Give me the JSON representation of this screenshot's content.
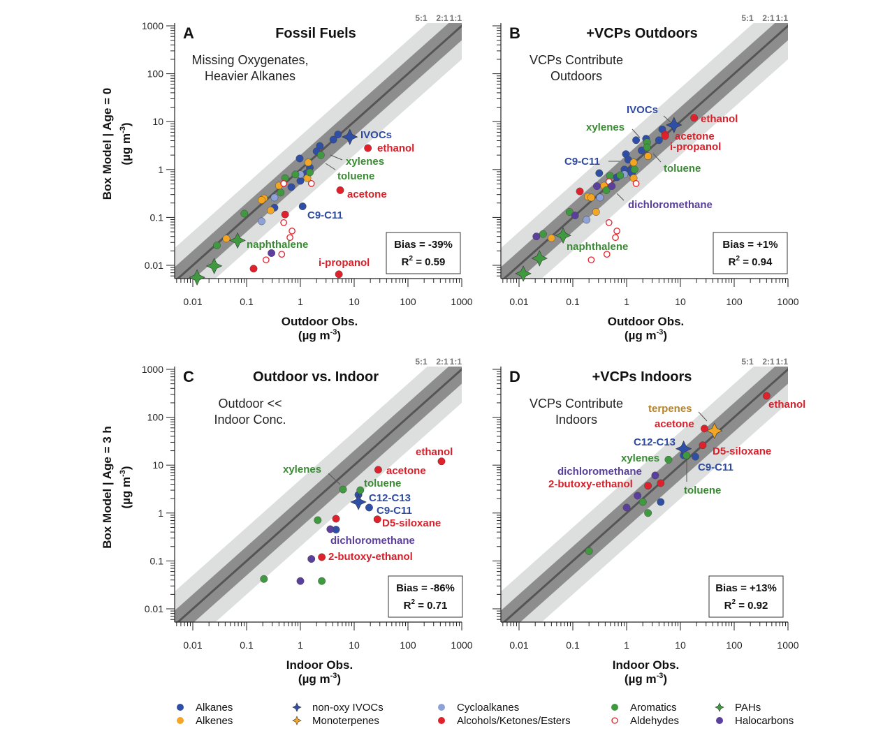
{
  "colors": {
    "Alkanes": "#2f4fa6",
    "Alkenes": "#f2a623",
    "non-oxy IVOCs": "#2f4fa6",
    "Monoterpenes": "#f2a623",
    "Cycloalkanes": "#8ea2d8",
    "Alcohols/Ketones/Esters": "#e0202a",
    "Aromatics": "#3f9a3f",
    "Aldehydes": "#e0202a",
    "PAHs": "#3f9a3f",
    "Halocarbons": "#5a3f9c",
    "text_blue": "#2d4aa0",
    "text_red": "#d8202a",
    "text_green": "#3a8a34",
    "text_purple": "#5a3f9c",
    "text_orange": "#b5842b",
    "band_2to1": "#8d8d8d",
    "band_5to1": "#dcdfde",
    "line_1to1": "#555555"
  },
  "legend": [
    {
      "label": "Alkanes",
      "marker": "circle"
    },
    {
      "label": "Alkenes",
      "marker": "circle"
    },
    {
      "label": "non-oxy IVOCs",
      "marker": "star"
    },
    {
      "label": "Monoterpenes",
      "marker": "star"
    },
    {
      "label": "Cycloalkanes",
      "marker": "circle"
    },
    {
      "label": "Alcohols/Ketones/Esters",
      "marker": "circle"
    },
    {
      "label": "Aromatics",
      "marker": "circle"
    },
    {
      "label": "Aldehydes",
      "marker": "open-circle"
    },
    {
      "label": "PAHs",
      "marker": "star"
    },
    {
      "label": "Halocarbons",
      "marker": "circle"
    }
  ],
  "chart_data": [
    {
      "type": "scatter",
      "panel": "A",
      "title": "Fossil Fuels",
      "subtitle": [
        "Missing Oxygenates,",
        "Heavier Alkanes"
      ],
      "xlabel": "Outdoor Obs.",
      "ylabel": "Box Model | Age = 0",
      "unit": {
        "pre": "(µg m",
        "sup": "-3",
        "post": ")"
      },
      "xscale": "log",
      "yscale": "log",
      "xlim": [
        0.0046,
        1000
      ],
      "ylim": [
        0.0053,
        1140
      ],
      "xticks": [
        "0.01",
        "0.1",
        "1",
        "10",
        "100",
        "1000"
      ],
      "yticks": [
        "0.01",
        "0.1",
        "1",
        "10",
        "100",
        "1000"
      ],
      "ratio_labels": [
        "5:1",
        "2:1",
        "1:1"
      ],
      "bias": "Bias = -39%",
      "r2": {
        "pre": "R",
        "sup": "2",
        "post": " = 0.59"
      },
      "annotations": [
        {
          "text": "IVOCs",
          "color": "text_blue"
        },
        {
          "text": "ethanol",
          "color": "text_red"
        },
        {
          "text": "xylenes",
          "color": "text_green"
        },
        {
          "text": "toluene",
          "color": "text_green"
        },
        {
          "text": "acetone",
          "color": "text_red"
        },
        {
          "text": "C9-C11",
          "color": "text_blue"
        },
        {
          "text": "naphthalene",
          "color": "text_green"
        },
        {
          "text": "i-propanol",
          "color": "text_red"
        }
      ],
      "series": [
        {
          "category": "Alkanes",
          "points": [
            [
              5.0,
              5.4
            ],
            [
              4.1,
              4.2
            ],
            [
              2.3,
              3.1
            ],
            [
              2.0,
              2.4
            ],
            [
              0.97,
              1.7
            ],
            [
              1.5,
              1.1
            ],
            [
              1.3,
              0.84
            ],
            [
              1.0,
              0.58
            ],
            [
              0.68,
              0.43
            ],
            [
              0.33,
              0.16
            ],
            [
              1.1,
              0.17
            ]
          ]
        },
        {
          "category": "non-oxy IVOCs",
          "points": [
            [
              8.3,
              4.8
            ]
          ]
        },
        {
          "category": "Alkenes",
          "points": [
            [
              1.4,
              1.4
            ],
            [
              1.35,
              0.66
            ],
            [
              0.4,
              0.46
            ],
            [
              0.21,
              0.25
            ],
            [
              0.19,
              0.23
            ],
            [
              0.28,
              0.14
            ],
            [
              0.042,
              0.036
            ]
          ]
        },
        {
          "category": "Cycloalkanes",
          "points": [
            [
              1.0,
              0.79
            ],
            [
              0.33,
              0.26
            ],
            [
              0.19,
              0.083
            ]
          ]
        },
        {
          "category": "Aromatics",
          "points": [
            [
              2.4,
              2.0
            ],
            [
              1.5,
              0.87
            ],
            [
              0.81,
              0.79
            ],
            [
              0.52,
              0.66
            ],
            [
              0.43,
              0.33
            ],
            [
              0.091,
              0.12
            ],
            [
              0.028,
              0.026
            ]
          ]
        },
        {
          "category": "Alcohols/Ketones/Esters",
          "points": [
            [
              18,
              2.8
            ],
            [
              5.5,
              0.37
            ],
            [
              5.2,
              0.0065
            ],
            [
              0.52,
              0.115
            ],
            [
              0.135,
              0.0085
            ]
          ]
        },
        {
          "category": "Aldehydes",
          "points": [
            [
              0.49,
              0.51
            ],
            [
              1.6,
              0.51
            ],
            [
              0.49,
              0.078
            ],
            [
              0.7,
              0.052
            ],
            [
              0.64,
              0.038
            ],
            [
              0.45,
              0.017
            ],
            [
              0.23,
              0.013
            ]
          ]
        },
        {
          "category": "Halocarbons",
          "points": [
            [
              0.29,
              0.018
            ]
          ]
        },
        {
          "category": "PAHs",
          "points": [
            [
              0.068,
              0.033
            ],
            [
              0.025,
              0.0097
            ],
            [
              0.012,
              0.0056
            ]
          ]
        }
      ]
    },
    {
      "type": "scatter",
      "panel": "B",
      "title": "+VCPs Outdoors",
      "subtitle": [
        "VCPs Contribute",
        "Outdoors"
      ],
      "xlabel": "Outdoor Obs.",
      "ylabel": "",
      "unit": {
        "pre": "(µg m",
        "sup": "-3",
        "post": ")"
      },
      "xscale": "log",
      "yscale": "log",
      "xlim": [
        0.0046,
        1000
      ],
      "ylim": [
        0.0053,
        1140
      ],
      "xticks": [
        "0.01",
        "0.1",
        "1",
        "10",
        "100",
        "1000"
      ],
      "yticks": [],
      "ratio_labels": [
        "5:1",
        "2:1",
        "1:1"
      ],
      "bias": "Bias = +1%",
      "r2": {
        "pre": "R",
        "sup": "2",
        "post": " = 0.94"
      },
      "annotations": [
        {
          "text": "IVOCs",
          "color": "text_blue"
        },
        {
          "text": "ethanol",
          "color": "text_red"
        },
        {
          "text": "xylenes",
          "color": "text_green"
        },
        {
          "text": "acetone",
          "color": "text_red"
        },
        {
          "text": "i-propanol",
          "color": "text_red"
        },
        {
          "text": "C9-C11",
          "color": "text_blue"
        },
        {
          "text": "toluene",
          "color": "text_green"
        },
        {
          "text": "dichloromethane",
          "color": "text_purple"
        },
        {
          "text": "naphthalene",
          "color": "text_green"
        }
      ],
      "series": [
        {
          "category": "Alkanes",
          "points": [
            [
              4.6,
              6.9
            ],
            [
              4.0,
              4.1
            ],
            [
              1.5,
              4.1
            ],
            [
              2.3,
              4.4
            ],
            [
              1.9,
              2.5
            ],
            [
              0.97,
              2.1
            ],
            [
              1.07,
              1.6
            ],
            [
              0.91,
              1.0
            ],
            [
              0.31,
              0.84
            ],
            [
              0.66,
              0.69
            ],
            [
              1.2,
              0.96
            ],
            [
              1.25,
              0.84
            ]
          ]
        },
        {
          "category": "non-oxy IVOCs",
          "points": [
            [
              7.6,
              8.5
            ]
          ]
        },
        {
          "category": "Alkenes",
          "points": [
            [
              2.5,
              1.9
            ],
            [
              1.35,
              1.4
            ],
            [
              1.35,
              0.66
            ],
            [
              0.38,
              0.46
            ],
            [
              0.19,
              0.27
            ],
            [
              0.22,
              0.26
            ],
            [
              0.27,
              0.13
            ],
            [
              0.04,
              0.037
            ]
          ]
        },
        {
          "category": "Cycloalkanes",
          "points": [
            [
              0.91,
              0.79
            ],
            [
              0.32,
              0.26
            ],
            [
              0.18,
              0.089
            ]
          ]
        },
        {
          "category": "Aromatics",
          "points": [
            [
              2.4,
              3.7
            ],
            [
              2.4,
              2.9
            ],
            [
              1.4,
              1.0
            ],
            [
              0.49,
              0.74
            ],
            [
              0.76,
              0.76
            ],
            [
              0.42,
              0.37
            ],
            [
              0.087,
              0.13
            ],
            [
              0.028,
              0.045
            ]
          ]
        },
        {
          "category": "Alcohols/Ketones/Esters",
          "points": [
            [
              18,
              12
            ],
            [
              5.2,
              5.4
            ],
            [
              5.2,
              5.0
            ],
            [
              0.135,
              0.35
            ]
          ]
        },
        {
          "category": "Aldehydes",
          "points": [
            [
              0.47,
              0.56
            ],
            [
              1.5,
              0.51
            ],
            [
              0.47,
              0.078
            ],
            [
              0.66,
              0.052
            ],
            [
              0.62,
              0.038
            ],
            [
              0.43,
              0.017
            ],
            [
              0.22,
              0.013
            ]
          ]
        },
        {
          "category": "Halocarbons",
          "points": [
            [
              0.28,
              0.45
            ],
            [
              0.53,
              0.45
            ],
            [
              0.11,
              0.11
            ],
            [
              0.021,
              0.04
            ]
          ]
        },
        {
          "category": "PAHs",
          "points": [
            [
              0.066,
              0.042
            ],
            [
              0.024,
              0.014
            ],
            [
              0.012,
              0.0067
            ]
          ]
        }
      ]
    },
    {
      "type": "scatter",
      "panel": "C",
      "title": "Outdoor vs. Indoor",
      "subtitle": [
        "Outdoor <<",
        "Indoor Conc."
      ],
      "xlabel": "Indoor Obs.",
      "ylabel": "Box Model | Age = 3 h",
      "unit": {
        "pre": "(µg m",
        "sup": "-3",
        "post": ")"
      },
      "xscale": "log",
      "yscale": "log",
      "xlim": [
        0.0046,
        1000
      ],
      "ylim": [
        0.0053,
        1140
      ],
      "xticks": [
        "0.01",
        "0.1",
        "1",
        "10",
        "100",
        "1000"
      ],
      "yticks": [
        "0.01",
        "0.1",
        "1",
        "10",
        "100",
        "1000"
      ],
      "ratio_labels": [
        "5:1",
        "2:1",
        "1:1"
      ],
      "bias": "Bias = -86%",
      "r2": {
        "pre": "R",
        "sup": "2",
        "post": " = 0.71"
      },
      "annotations": [
        {
          "text": "ethanol",
          "color": "text_red"
        },
        {
          "text": "acetone",
          "color": "text_red"
        },
        {
          "text": "xylenes",
          "color": "text_green"
        },
        {
          "text": "toluene",
          "color": "text_green"
        },
        {
          "text": "C12-C13",
          "color": "text_blue"
        },
        {
          "text": "C9-C11",
          "color": "text_blue"
        },
        {
          "text": "D5-siloxane",
          "color": "text_red"
        },
        {
          "text": "dichloromethane",
          "color": "text_purple"
        },
        {
          "text": "2-butoxy-ethanol",
          "color": "text_red"
        }
      ],
      "series": [
        {
          "category": "Alkanes",
          "points": [
            [
              12,
              2.4
            ],
            [
              19,
              1.3
            ],
            [
              4.6,
              0.45
            ]
          ]
        },
        {
          "category": "non-oxy IVOCs",
          "points": [
            [
              12,
              1.7
            ]
          ]
        },
        {
          "category": "Aromatics",
          "points": [
            [
              6.2,
              3.1
            ],
            [
              13,
              3.0
            ],
            [
              2.1,
              0.71
            ],
            [
              0.21,
              0.042
            ],
            [
              2.5,
              0.038
            ]
          ]
        },
        {
          "category": "Alcohols/Ketones/Esters",
          "points": [
            [
              420,
              12
            ],
            [
              28,
              8
            ],
            [
              27,
              0.74
            ],
            [
              4.6,
              0.76
            ],
            [
              2.5,
              0.12
            ]
          ]
        },
        {
          "category": "Halocarbons",
          "points": [
            [
              3.6,
              0.46
            ],
            [
              1.6,
              0.11
            ],
            [
              1.0,
              0.038
            ]
          ]
        }
      ]
    },
    {
      "type": "scatter",
      "panel": "D",
      "title": "+VCPs Indoors",
      "subtitle": [
        "VCPs Contribute",
        "Indoors"
      ],
      "xlabel": "Indoor Obs.",
      "ylabel": "",
      "unit": {
        "pre": "(µg m",
        "sup": "-3",
        "post": ")"
      },
      "xscale": "log",
      "yscale": "log",
      "xlim": [
        0.0046,
        1000
      ],
      "ylim": [
        0.0053,
        1140
      ],
      "xticks": [
        "0.01",
        "0.1",
        "1",
        "10",
        "100",
        "1000"
      ],
      "yticks": [],
      "ratio_labels": [
        "5:1",
        "2:1",
        "1:1"
      ],
      "bias": "Bias = +13%",
      "r2": {
        "pre": "R",
        "sup": "2",
        "post": " = 0.92"
      },
      "annotations": [
        {
          "text": "ethanol",
          "color": "text_red"
        },
        {
          "text": "terpenes",
          "color": "text_orange"
        },
        {
          "text": "acetone",
          "color": "text_red"
        },
        {
          "text": "C12-C13",
          "color": "text_blue"
        },
        {
          "text": "D5-siloxane",
          "color": "text_red"
        },
        {
          "text": "xylenes",
          "color": "text_green"
        },
        {
          "text": "C9-C11",
          "color": "text_blue"
        },
        {
          "text": "dichloromethane",
          "color": "text_purple"
        },
        {
          "text": "2-butoxy-ethanol",
          "color": "text_red"
        },
        {
          "text": "toluene",
          "color": "text_green"
        }
      ],
      "series": [
        {
          "category": "Alkanes",
          "points": [
            [
              11.5,
              16
            ],
            [
              19,
              15
            ],
            [
              4.3,
              1.7
            ]
          ]
        },
        {
          "category": "non-oxy IVOCs",
          "points": [
            [
              11.5,
              22
            ]
          ]
        },
        {
          "category": "Monoterpenes",
          "points": [
            [
              43,
              52
            ]
          ]
        },
        {
          "category": "Aromatics",
          "points": [
            [
              6.0,
              13
            ],
            [
              13,
              16
            ],
            [
              2.0,
              1.7
            ],
            [
              2.5,
              1.0
            ],
            [
              0.2,
              0.16
            ]
          ]
        },
        {
          "category": "Alcohols/Ketones/Esters",
          "points": [
            [
              400,
              280
            ],
            [
              28,
              58
            ],
            [
              26,
              26
            ],
            [
              4.3,
              4.2
            ],
            [
              2.5,
              3.7
            ]
          ]
        },
        {
          "category": "Halocarbons",
          "points": [
            [
              3.4,
              6.1
            ],
            [
              1.6,
              2.3
            ],
            [
              1.0,
              1.3
            ]
          ]
        }
      ]
    }
  ]
}
